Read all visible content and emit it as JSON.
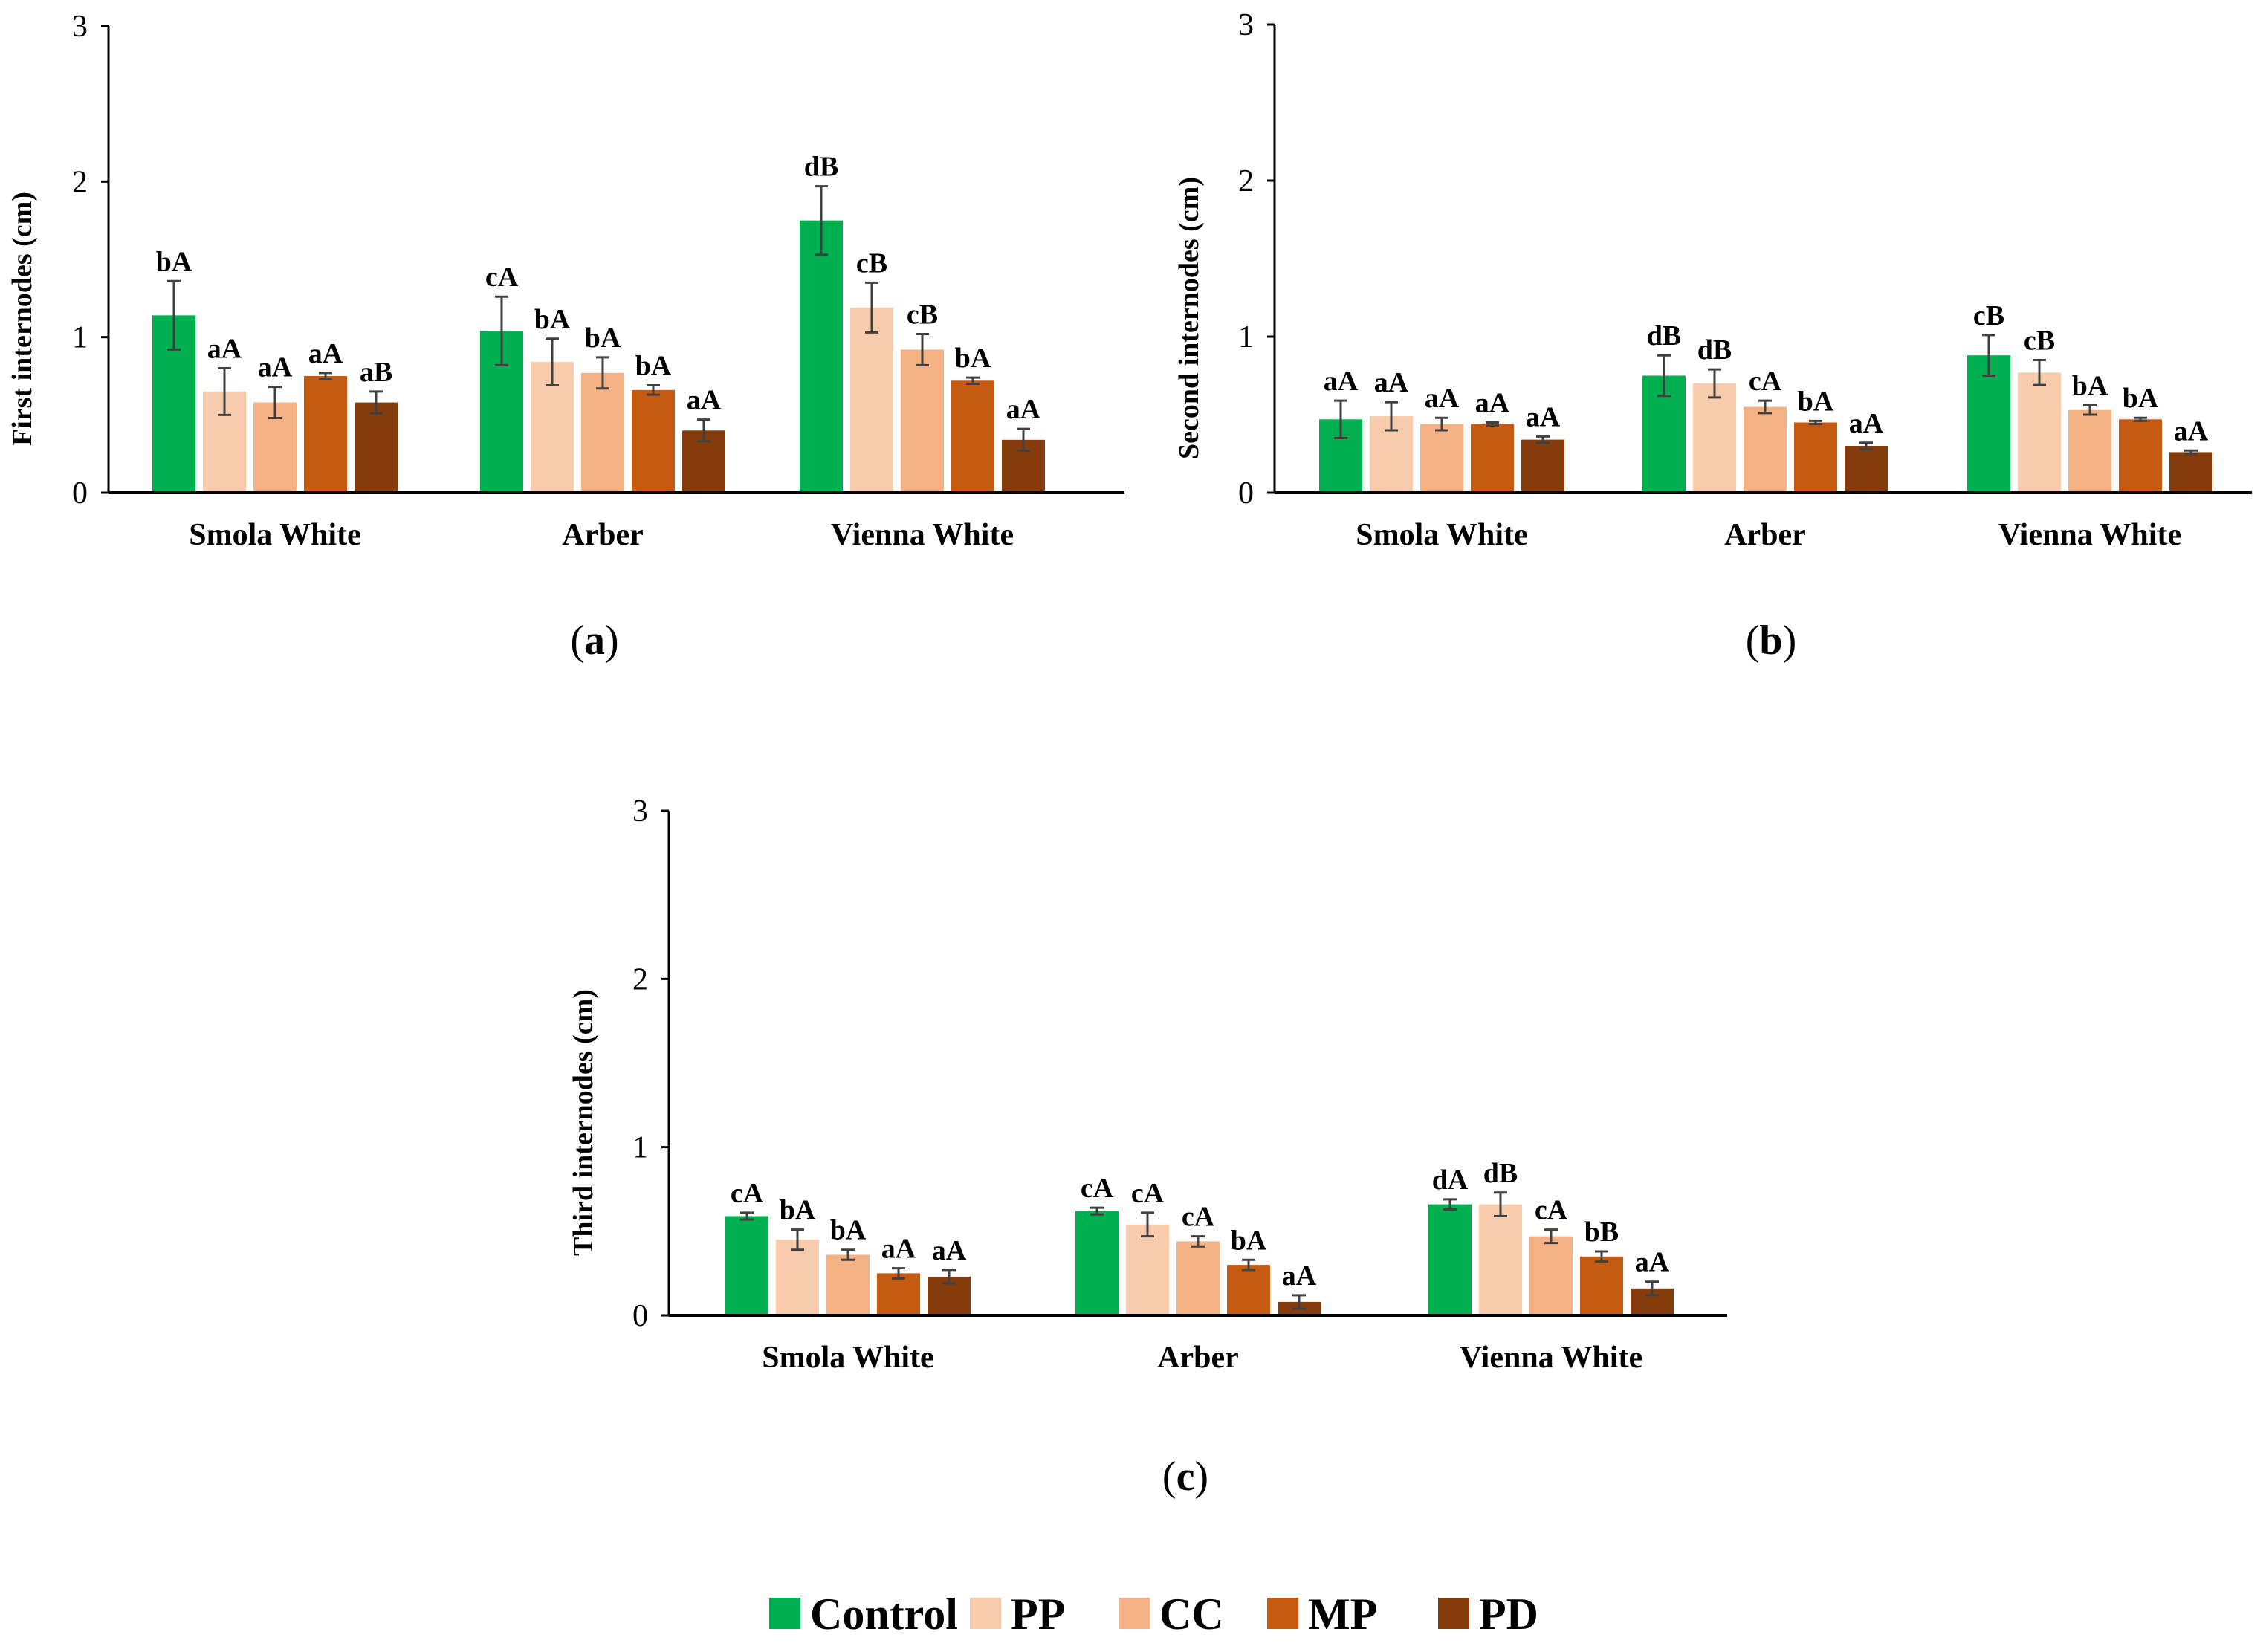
{
  "legend": [
    {
      "name": "Control",
      "color": "#00b050"
    },
    {
      "name": "PP",
      "color": "#f8cbad"
    },
    {
      "name": "CC",
      "color": "#f4b183"
    },
    {
      "name": "MP",
      "color": "#c55a11"
    },
    {
      "name": "PD",
      "color": "#843c0c"
    }
  ],
  "error_bar_color": "#404040",
  "chart_data": [
    {
      "type": "bar",
      "panel": "a",
      "ylabel": "First internodes (cm)",
      "xlabel": "",
      "ylim": [
        0,
        3
      ],
      "yticks": [
        "0",
        "1",
        "2",
        "3"
      ],
      "categories": [
        "Smola White",
        "Arber",
        "Vienna White"
      ],
      "series": [
        {
          "name": "Control",
          "values": [
            1.14,
            1.04,
            1.75
          ],
          "errors": [
            0.22,
            0.22,
            0.22
          ],
          "labels": [
            "bA",
            "cA",
            "dB"
          ]
        },
        {
          "name": "PP",
          "values": [
            0.65,
            0.84,
            1.19
          ],
          "errors": [
            0.15,
            0.15,
            0.16
          ],
          "labels": [
            "aA",
            "bA",
            "cB"
          ]
        },
        {
          "name": "CC",
          "values": [
            0.58,
            0.77,
            0.92
          ],
          "errors": [
            0.1,
            0.1,
            0.1
          ],
          "labels": [
            "aA",
            "bA",
            "cB"
          ]
        },
        {
          "name": "MP",
          "values": [
            0.75,
            0.66,
            0.72
          ],
          "errors": [
            0.02,
            0.03,
            0.02
          ],
          "labels": [
            "aA",
            "bA",
            "bA"
          ]
        },
        {
          "name": "PD",
          "values": [
            0.58,
            0.4,
            0.34
          ],
          "errors": [
            0.07,
            0.07,
            0.07
          ],
          "labels": [
            "aB",
            "aA",
            "aA"
          ]
        }
      ]
    },
    {
      "type": "bar",
      "panel": "b",
      "ylabel": "Second internodes (cm)",
      "xlabel": "",
      "ylim": [
        0,
        3
      ],
      "yticks": [
        "0",
        "1",
        "2",
        "3"
      ],
      "categories": [
        "Smola White",
        "Arber",
        "Vienna White"
      ],
      "series": [
        {
          "name": "Control",
          "values": [
            0.47,
            0.75,
            0.88
          ],
          "errors": [
            0.12,
            0.13,
            0.13
          ],
          "labels": [
            "aA",
            "dB",
            "cB"
          ]
        },
        {
          "name": "PP",
          "values": [
            0.49,
            0.7,
            0.77
          ],
          "errors": [
            0.09,
            0.09,
            0.08
          ],
          "labels": [
            "aA",
            "dB",
            "cB"
          ]
        },
        {
          "name": "CC",
          "values": [
            0.44,
            0.55,
            0.53
          ],
          "errors": [
            0.04,
            0.04,
            0.03
          ],
          "labels": [
            "aA",
            "cA",
            "bA"
          ]
        },
        {
          "name": "MP",
          "values": [
            0.44,
            0.45,
            0.47
          ],
          "errors": [
            0.01,
            0.01,
            0.01
          ],
          "labels": [
            "aA",
            "bA",
            "bA"
          ]
        },
        {
          "name": "PD",
          "values": [
            0.34,
            0.3,
            0.26
          ],
          "errors": [
            0.02,
            0.02,
            0.01
          ],
          "labels": [
            "aA",
            "aA",
            "aA"
          ]
        }
      ]
    },
    {
      "type": "bar",
      "panel": "c",
      "ylabel": "Third internodes (cm)",
      "xlabel": "",
      "ylim": [
        0,
        3
      ],
      "yticks": [
        "0",
        "1",
        "2",
        "3"
      ],
      "categories": [
        "Smola White",
        "Arber",
        "Vienna White"
      ],
      "series": [
        {
          "name": "Control",
          "values": [
            0.59,
            0.62,
            0.66
          ],
          "errors": [
            0.02,
            0.02,
            0.03
          ],
          "labels": [
            "cA",
            "cA",
            "dA"
          ]
        },
        {
          "name": "PP",
          "values": [
            0.45,
            0.54,
            0.66
          ],
          "errors": [
            0.06,
            0.07,
            0.07
          ],
          "labels": [
            "bA",
            "cA",
            "dB"
          ]
        },
        {
          "name": "CC",
          "values": [
            0.36,
            0.44,
            0.47
          ],
          "errors": [
            0.03,
            0.03,
            0.04
          ],
          "labels": [
            "bA",
            "cA",
            "cA"
          ]
        },
        {
          "name": "MP",
          "values": [
            0.25,
            0.3,
            0.35
          ],
          "errors": [
            0.03,
            0.03,
            0.03
          ],
          "labels": [
            "aA",
            "bA",
            "bB"
          ]
        },
        {
          "name": "PD",
          "values": [
            0.23,
            0.08,
            0.16
          ],
          "errors": [
            0.04,
            0.04,
            0.04
          ],
          "labels": [
            "aA",
            "aA",
            "aA"
          ]
        }
      ]
    }
  ]
}
